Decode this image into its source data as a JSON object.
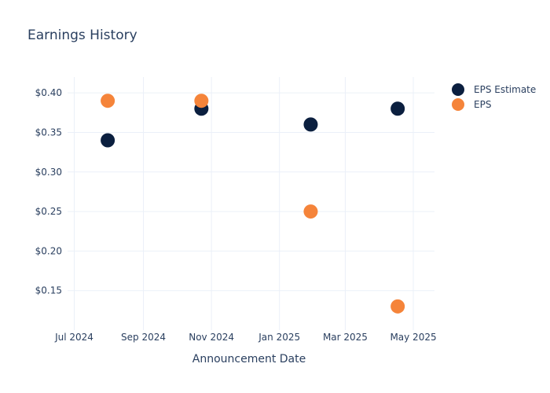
{
  "chart_data": {
    "type": "scatter",
    "title": "Earnings History",
    "xlabel": "Announcement Date",
    "ylabel": "",
    "x_ticks": [
      "Jul 2024",
      "Sep 2024",
      "Nov 2024",
      "Jan 2025",
      "Mar 2025",
      "May 2025"
    ],
    "y_ticks": [
      "$0.15",
      "$0.20",
      "$0.25",
      "$0.30",
      "$0.35",
      "$0.40"
    ],
    "ylim": [
      0.1,
      0.42
    ],
    "xlim": [
      "2024-06-25",
      "2025-05-20"
    ],
    "grid": true,
    "legend_position": "top-right",
    "series": [
      {
        "name": "EPS Estimate",
        "color": "#0b1f3f",
        "points": [
          {
            "x": "2024-07-31",
            "y": 0.34
          },
          {
            "x": "2024-10-23",
            "y": 0.38
          },
          {
            "x": "2025-01-29",
            "y": 0.36
          },
          {
            "x": "2025-04-17",
            "y": 0.38
          }
        ]
      },
      {
        "name": "EPS",
        "color": "#f5843a",
        "points": [
          {
            "x": "2024-07-31",
            "y": 0.39
          },
          {
            "x": "2024-10-23",
            "y": 0.39
          },
          {
            "x": "2025-01-29",
            "y": 0.25
          },
          {
            "x": "2025-04-17",
            "y": 0.13
          }
        ]
      }
    ]
  }
}
